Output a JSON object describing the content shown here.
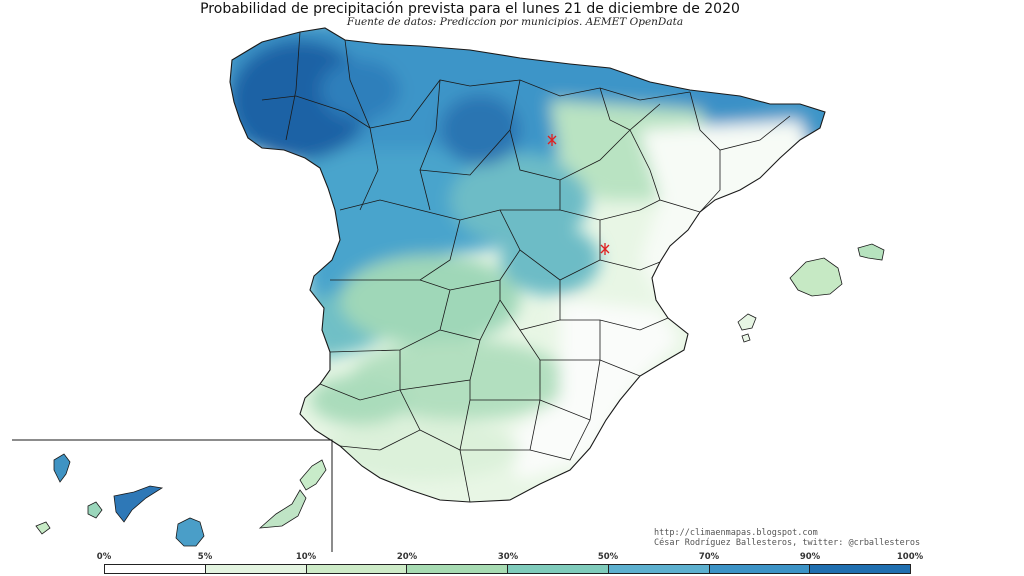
{
  "title": "Probabilidad de precipitación prevista para el lunes 21 de diciembre de 2020",
  "subtitle": "Fuente de datos: Prediccion por municipios. AEMET OpenData",
  "credits": {
    "url": "http://climaenmapas.blogspot.com",
    "author": "César Rodríguez Ballesteros, twitter: @crballesteros"
  },
  "legend": {
    "labels": [
      "0%",
      "5%",
      "10%",
      "20%",
      "30%",
      "50%",
      "70%",
      "90%",
      "100%"
    ],
    "colors": [
      "#ffffff",
      "#e3f4e0",
      "#cdebc7",
      "#a7dbb2",
      "#7fcbbb",
      "#5db0cf",
      "#3c93c6",
      "#1f6fb0"
    ]
  },
  "colors": {
    "sea": "#ffffff",
    "border": "#1a1a1a",
    "marker": "#e02020"
  }
}
